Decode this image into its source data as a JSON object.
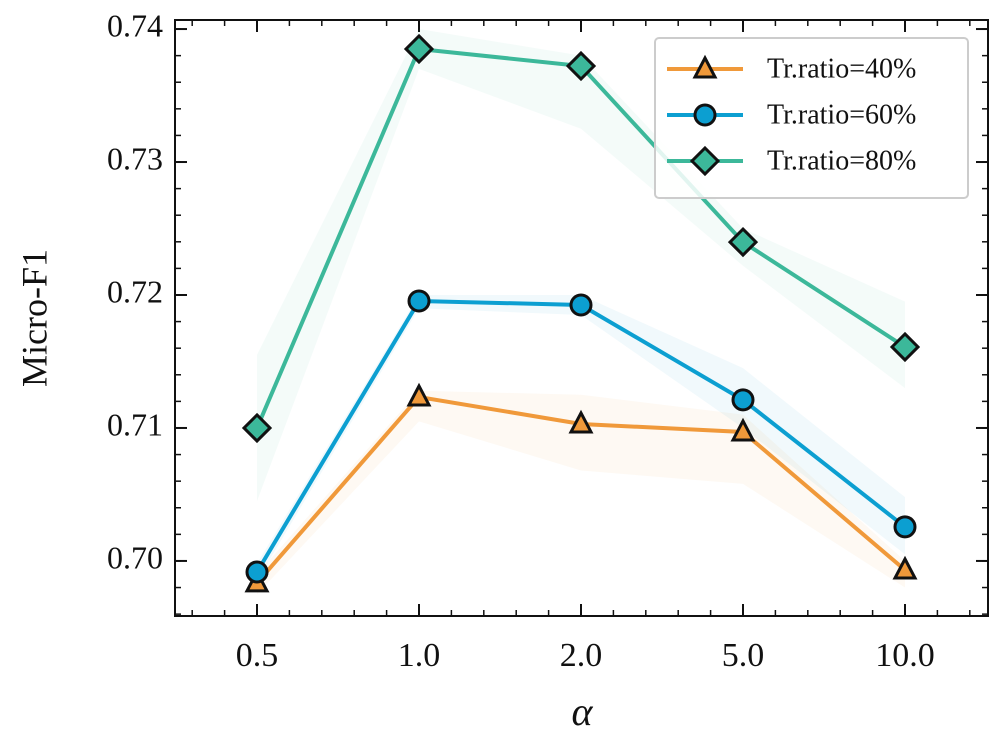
{
  "chart_data": {
    "type": "line",
    "x_label": "α",
    "y_label": "Micro-F1",
    "categories": [
      "0.5",
      "1.0",
      "2.0",
      "5.0",
      "10.0"
    ],
    "ylim": [
      0.69586,
      0.74068
    ],
    "yticks": [
      {
        "value": 0.7,
        "label": "0.70"
      },
      0.71,
      0.72,
      0.73,
      0.74
    ],
    "legend": "upper right",
    "series": [
      {
        "name": "Tr.ratio=40%",
        "color": "#f0993a",
        "marker": "triangle",
        "values": [
          0.69835,
          0.71233,
          0.7103,
          0.7097,
          0.69932
        ],
        "lower": [
          0.6975,
          0.7105,
          0.7068,
          0.7058,
          0.698
        ],
        "upper": [
          0.699,
          0.7128,
          0.7125,
          0.711,
          0.7
        ]
      },
      {
        "name": "Tr.ratio=60%",
        "color": "#0c9fd1",
        "marker": "circle",
        "values": [
          0.69917,
          0.71955,
          0.71925,
          0.71211,
          0.70256
        ],
        "lower": [
          0.6985,
          0.719,
          0.7185,
          0.71,
          0.7005
        ],
        "upper": [
          0.6998,
          0.72,
          0.72,
          0.7145,
          0.7048
        ]
      },
      {
        "name": "Tr.ratio=80%",
        "color": "#3cb89a",
        "marker": "diamond",
        "values": [
          0.71,
          0.7385,
          0.73722,
          0.72398,
          0.71609
        ],
        "lower": [
          0.7045,
          0.737,
          0.7325,
          0.7222,
          0.713
        ],
        "upper": [
          0.7155,
          0.74,
          0.738,
          0.725,
          0.7195
        ]
      }
    ]
  }
}
